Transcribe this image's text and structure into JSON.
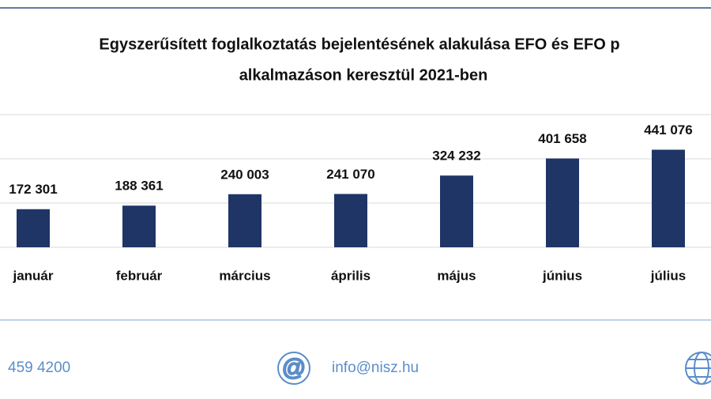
{
  "chart_data": {
    "type": "bar",
    "title": "Egyszerűsített foglalkoztatás  bejelentésének alakulása  EFO és EFO p",
    "subtitle": "alkalmazáson  keresztül  2021-ben",
    "categories": [
      "január",
      "február",
      "március",
      "április",
      "május",
      "június",
      "július"
    ],
    "values": [
      172301,
      188361,
      240003,
      241070,
      324232,
      401658,
      441076
    ],
    "value_labels": [
      "172 301",
      "188 361",
      "240 003",
      "241 070",
      "324 232",
      "401 658",
      "441 076"
    ],
    "color": "#1f3566",
    "ylim": [
      0,
      600000
    ],
    "yticks": [
      0,
      200000,
      400000,
      600000
    ],
    "grid": true
  },
  "footer": {
    "phone": "459 4200",
    "email": "info@nisz.hu"
  }
}
